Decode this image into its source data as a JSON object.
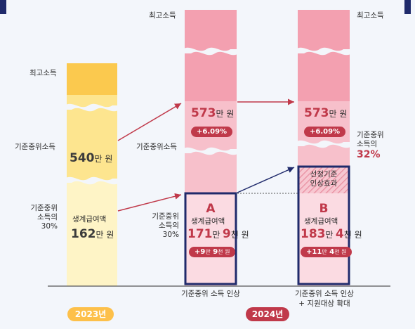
{
  "chart_data": {
    "type": "bar",
    "title": "",
    "columns": [
      {
        "year": "2023년",
        "levels": [
          "최고소득",
          "기준중위소득",
          "기준중위 소득의 30%"
        ],
        "median_income": "540만 원",
        "benefit_label": "생계급여액",
        "benefit": "162만 원",
        "benefit_value_won": 1620000
      },
      {
        "year": "2024년",
        "scenario": "기준중위 소득 인상",
        "letter": "A",
        "levels": [
          "최고소득",
          "기준중위소득",
          "기준중위 소득의 30%"
        ],
        "median_income": "573만 원",
        "median_income_change": "+6.09%",
        "benefit_label": "생계급여액",
        "benefit": "171만 9천 원",
        "benefit_value_won": 1719000,
        "benefit_increase": "+9만 9천 원"
      },
      {
        "year": "2024년",
        "scenario": "기준중위 소득 인상 + 지원대상 확대",
        "letter": "B",
        "levels": [
          "최고소득",
          "기준중위 소득의",
          "32%"
        ],
        "median_income": "573만 원",
        "median_income_change": "+6.09%",
        "threshold_label": "선정기준 인상효과",
        "benefit_label": "생계급여액",
        "benefit": "183만 4천 원",
        "benefit_value_won": 1834000,
        "benefit_increase": "+11만 4천 원"
      }
    ]
  },
  "labels": {
    "top_income": "최고소득",
    "median_income": "기준중위소득",
    "median_30_line1": "기준중위",
    "median_30_line2": "소득의",
    "median_30_line3": "30%",
    "median_32_line1": "기준중위",
    "median_32_line2": "소득의",
    "median_32_pct": "32%",
    "benefit_label": "생계급여액",
    "threshold_line1": "선정기준",
    "threshold_line2": "인상효과"
  },
  "col2023": {
    "median_num": "540",
    "median_unit": "만 원",
    "benefit_num": "162",
    "benefit_unit": "만 원"
  },
  "colA": {
    "letter": "A",
    "median_num": "573",
    "median_unit": "만 원",
    "median_change": "+6.09%",
    "benefit_num1": "171",
    "benefit_unit1": "만",
    "benefit_num2": "9",
    "benefit_unit2": "천 원",
    "inc_num1": "+9",
    "inc_unit1": "만",
    "inc_num2": "9",
    "inc_unit2": "천 원",
    "caption": "기준중위 소득 인상"
  },
  "colB": {
    "letter": "B",
    "median_num": "573",
    "median_unit": "만 원",
    "median_change": "+6.09%",
    "benefit_num1": "183",
    "benefit_unit1": "만",
    "benefit_num2": "4",
    "benefit_unit2": "천 원",
    "inc_num1": "+11",
    "inc_unit1": "만",
    "inc_num2": "4",
    "inc_unit2": "천 원",
    "caption_line1": "기준중위 소득 인상",
    "caption_line2": "+ 지원대상 확대"
  },
  "years": {
    "y2023": "2023년",
    "y2024": "2024년"
  },
  "colors": {
    "yellow_dark": "#fbc94e",
    "yellow_mid": "#fde58f",
    "yellow_light": "#fef4c6",
    "pink_dark": "#f3a0b0",
    "pink_mid": "#f7c0cb",
    "pink_light": "#fbdbe2",
    "navy": "#1f2a6b",
    "red": "#c0394a",
    "orange_badge": "#fdc04a"
  }
}
